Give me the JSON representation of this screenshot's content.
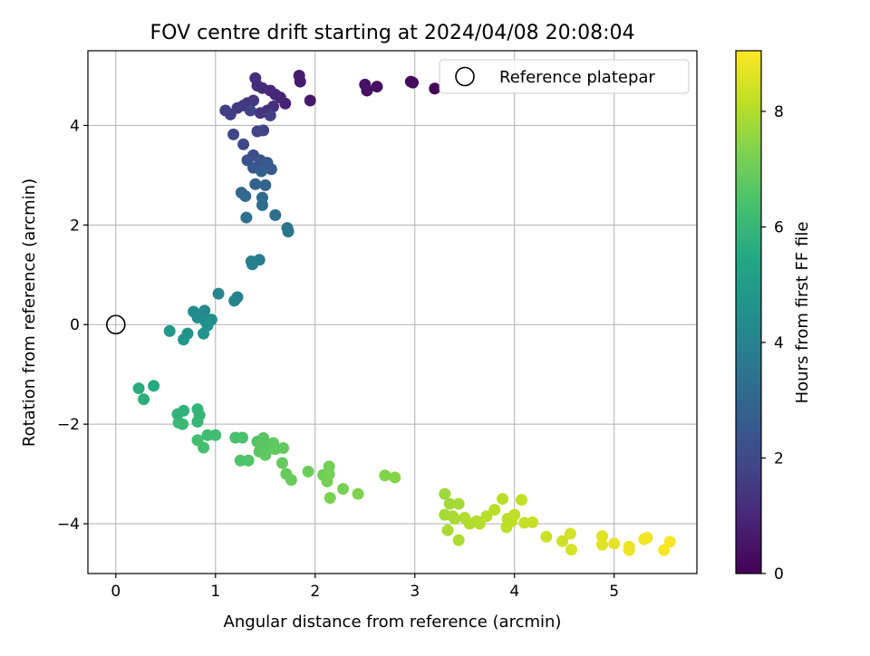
{
  "chart_data": {
    "type": "scatter",
    "title": "FOV centre drift starting at 2024/04/08 20:08:04",
    "xlabel": "Angular distance from reference (arcmin)",
    "ylabel": "Rotation from reference (arcmin)",
    "xlim": [
      -0.28,
      5.83
    ],
    "ylim": [
      -5.0,
      5.5
    ],
    "xticks": [
      0,
      1,
      2,
      3,
      4,
      5
    ],
    "yticks": [
      -4,
      -2,
      0,
      2,
      4
    ],
    "grid": true,
    "legend": {
      "position": "top-right",
      "entries": [
        "Reference platepar"
      ]
    },
    "reference_point": {
      "name": "Reference platepar",
      "x": 0,
      "y": 0
    },
    "colorbar": {
      "label": "Hours from first FF file",
      "range": [
        0,
        9.05
      ],
      "ticks": [
        0,
        2,
        4,
        6,
        8
      ],
      "colormap": "viridis",
      "colors": [
        "#440154",
        "#482475",
        "#414487",
        "#355f8d",
        "#2a788e",
        "#21918c",
        "#22a884",
        "#44bf70",
        "#7ad151",
        "#bddf26",
        "#fde725"
      ]
    },
    "points": [
      [
        3.2,
        4.74,
        0.1
      ],
      [
        2.98,
        4.86,
        0.2
      ],
      [
        2.96,
        4.88,
        0.25
      ],
      [
        2.62,
        4.78,
        0.35
      ],
      [
        2.52,
        4.7,
        0.4
      ],
      [
        2.5,
        4.82,
        0.45
      ],
      [
        1.95,
        4.5,
        0.6
      ],
      [
        1.85,
        4.88,
        0.7
      ],
      [
        1.84,
        5.0,
        0.75
      ],
      [
        1.7,
        4.44,
        0.85
      ],
      [
        1.65,
        4.56,
        0.95
      ],
      [
        1.6,
        4.62,
        1.0
      ],
      [
        1.55,
        4.7,
        1.05
      ],
      [
        1.47,
        4.75,
        1.1
      ],
      [
        1.42,
        4.8,
        1.15
      ],
      [
        1.4,
        4.95,
        1.2
      ],
      [
        1.58,
        4.38,
        1.25
      ],
      [
        1.52,
        4.3,
        1.3
      ],
      [
        1.45,
        4.25,
        1.35
      ],
      [
        1.38,
        4.5,
        1.4
      ],
      [
        1.32,
        4.45,
        1.45
      ],
      [
        1.28,
        4.4,
        1.5
      ],
      [
        1.22,
        4.35,
        1.55
      ],
      [
        1.15,
        4.22,
        1.6
      ],
      [
        1.1,
        4.3,
        1.65
      ],
      [
        1.55,
        4.2,
        1.7
      ],
      [
        1.35,
        4.3,
        1.75
      ],
      [
        1.48,
        3.9,
        1.8
      ],
      [
        1.42,
        3.88,
        1.85
      ],
      [
        1.18,
        3.82,
        1.9
      ],
      [
        1.28,
        3.62,
        1.95
      ],
      [
        1.38,
        3.4,
        2.1
      ],
      [
        1.32,
        3.3,
        2.2
      ],
      [
        1.45,
        3.3,
        2.3
      ],
      [
        1.38,
        3.15,
        2.4
      ],
      [
        1.52,
        3.25,
        2.5
      ],
      [
        1.56,
        3.12,
        2.6
      ],
      [
        1.46,
        3.08,
        2.7
      ],
      [
        1.4,
        2.82,
        2.85
      ],
      [
        1.5,
        2.8,
        2.95
      ],
      [
        1.26,
        2.65,
        3.0
      ],
      [
        1.3,
        2.58,
        3.05
      ],
      [
        1.47,
        2.55,
        3.1
      ],
      [
        1.47,
        2.4,
        3.2
      ],
      [
        1.6,
        2.2,
        3.3
      ],
      [
        1.31,
        2.15,
        3.35
      ],
      [
        1.72,
        1.94,
        3.5
      ],
      [
        1.73,
        1.87,
        3.55
      ],
      [
        1.44,
        1.3,
        3.8
      ],
      [
        1.36,
        1.27,
        3.85
      ],
      [
        1.37,
        1.21,
        3.9
      ],
      [
        1.22,
        0.55,
        4.0
      ],
      [
        1.19,
        0.48,
        4.05
      ],
      [
        1.03,
        0.62,
        4.15
      ],
      [
        0.89,
        0.28,
        4.25
      ],
      [
        0.78,
        0.26,
        4.3
      ],
      [
        0.82,
        0.14,
        4.35
      ],
      [
        0.9,
        0.07,
        4.4
      ],
      [
        0.96,
        0.1,
        4.45
      ],
      [
        0.92,
        -0.02,
        4.55
      ],
      [
        0.88,
        -0.18,
        4.6
      ],
      [
        0.72,
        -0.18,
        4.7
      ],
      [
        0.68,
        -0.3,
        4.75
      ],
      [
        0.54,
        -0.13,
        4.85
      ],
      [
        0.38,
        -1.23,
        5.5
      ],
      [
        0.23,
        -1.28,
        5.6
      ],
      [
        0.28,
        -1.5,
        5.7
      ],
      [
        0.68,
        -1.73,
        5.8
      ],
      [
        0.62,
        -1.8,
        5.85
      ],
      [
        0.82,
        -1.7,
        5.9
      ],
      [
        0.84,
        -1.82,
        5.95
      ],
      [
        0.82,
        -1.95,
        6.0
      ],
      [
        0.63,
        -1.97,
        6.05
      ],
      [
        0.67,
        -2.0,
        6.1
      ],
      [
        0.92,
        -2.22,
        6.2
      ],
      [
        1.0,
        -2.22,
        6.25
      ],
      [
        0.82,
        -2.32,
        6.3
      ],
      [
        0.88,
        -2.47,
        6.35
      ],
      [
        1.2,
        -2.27,
        6.4
      ],
      [
        1.27,
        -2.27,
        6.45
      ],
      [
        1.25,
        -2.73,
        6.5
      ],
      [
        1.33,
        -2.73,
        6.55
      ],
      [
        1.42,
        -2.35,
        6.6
      ],
      [
        1.48,
        -2.28,
        6.65
      ],
      [
        1.46,
        -2.45,
        6.7
      ],
      [
        1.52,
        -2.52,
        6.72
      ],
      [
        1.44,
        -2.55,
        6.74
      ],
      [
        1.56,
        -2.43,
        6.76
      ],
      [
        1.5,
        -2.62,
        6.78
      ],
      [
        1.58,
        -2.38,
        6.8
      ],
      [
        1.6,
        -2.5,
        6.82
      ],
      [
        1.68,
        -2.48,
        6.85
      ],
      [
        1.67,
        -2.78,
        6.88
      ],
      [
        1.71,
        -3.0,
        6.92
      ],
      [
        1.76,
        -3.12,
        6.95
      ],
      [
        1.93,
        -2.95,
        7.0
      ],
      [
        2.08,
        -3.02,
        7.05
      ],
      [
        2.12,
        -3.05,
        7.08
      ],
      [
        2.14,
        -2.85,
        7.1
      ],
      [
        2.14,
        -3.0,
        7.12
      ],
      [
        2.12,
        -3.15,
        7.15
      ],
      [
        2.28,
        -3.3,
        7.2
      ],
      [
        2.15,
        -3.48,
        7.25
      ],
      [
        2.43,
        -3.4,
        7.3
      ],
      [
        2.7,
        -3.03,
        7.35
      ],
      [
        2.8,
        -3.07,
        7.4
      ],
      [
        3.3,
        -3.4,
        7.7
      ],
      [
        3.35,
        -3.6,
        7.75
      ],
      [
        3.3,
        -3.82,
        7.8
      ],
      [
        3.44,
        -3.6,
        7.82
      ],
      [
        3.38,
        -3.85,
        7.85
      ],
      [
        3.4,
        -3.9,
        7.88
      ],
      [
        3.33,
        -4.13,
        7.9
      ],
      [
        3.44,
        -4.33,
        7.92
      ],
      [
        3.5,
        -3.88,
        7.95
      ],
      [
        3.55,
        -4.0,
        7.98
      ],
      [
        3.62,
        -3.95,
        8.0
      ],
      [
        3.65,
        -4.0,
        8.02
      ],
      [
        3.72,
        -3.85,
        8.05
      ],
      [
        3.8,
        -3.72,
        8.08
      ],
      [
        3.88,
        -3.5,
        8.1
      ],
      [
        3.93,
        -3.9,
        8.12
      ],
      [
        3.92,
        -4.07,
        8.15
      ],
      [
        3.97,
        -3.95,
        8.18
      ],
      [
        4.0,
        -3.82,
        8.2
      ],
      [
        4.07,
        -3.52,
        8.22
      ],
      [
        4.1,
        -3.98,
        8.25
      ],
      [
        4.18,
        -3.97,
        8.28
      ],
      [
        4.32,
        -4.26,
        8.35
      ],
      [
        4.48,
        -4.35,
        8.4
      ],
      [
        4.56,
        -4.2,
        8.45
      ],
      [
        4.57,
        -4.52,
        8.5
      ],
      [
        4.88,
        -4.25,
        8.6
      ],
      [
        4.88,
        -4.42,
        8.65
      ],
      [
        5.0,
        -4.4,
        8.7
      ],
      [
        5.15,
        -4.46,
        8.75
      ],
      [
        5.15,
        -4.53,
        8.8
      ],
      [
        5.3,
        -4.31,
        8.85
      ],
      [
        5.33,
        -4.28,
        8.88
      ],
      [
        5.5,
        -4.53,
        8.95
      ],
      [
        5.56,
        -4.36,
        9.0
      ]
    ]
  }
}
